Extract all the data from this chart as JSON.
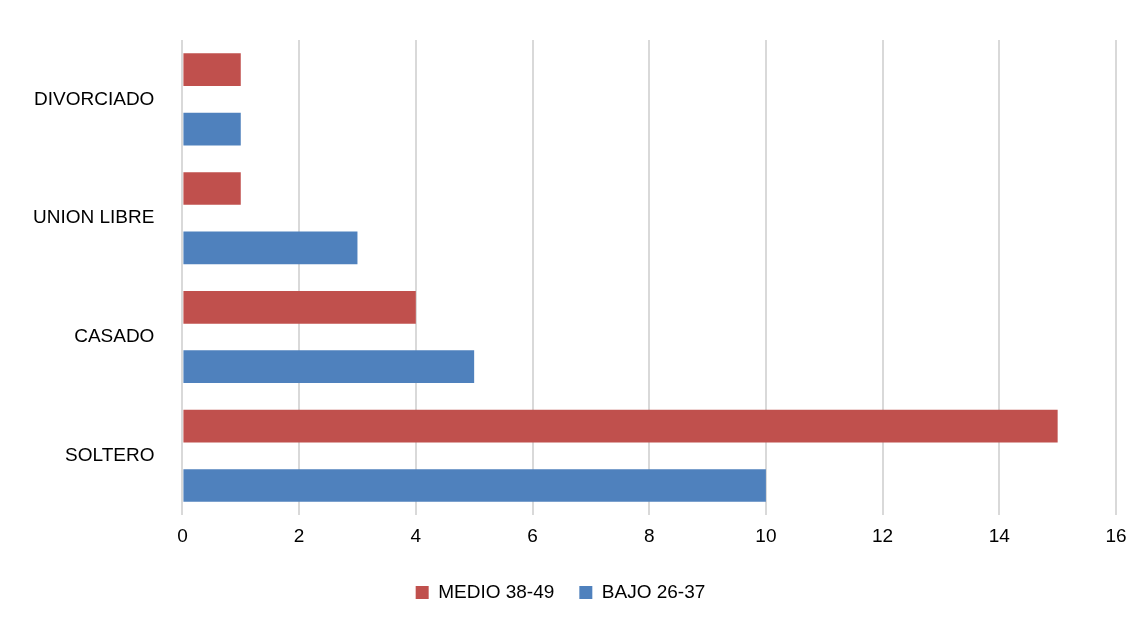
{
  "chart_data": {
    "type": "bar",
    "orientation": "horizontal",
    "categories": [
      "DIVORCIADO",
      "UNION LIBRE",
      "CASADO",
      "SOLTERO"
    ],
    "series": [
      {
        "name": "MEDIO 38-49",
        "color": "#c0504d",
        "values": [
          1,
          1,
          4,
          15
        ]
      },
      {
        "name": "BAJO 26-37",
        "color": "#4f81bd",
        "values": [
          1,
          3,
          5,
          10
        ]
      }
    ],
    "xlim": [
      0,
      16
    ],
    "xticks": [
      0,
      2,
      4,
      6,
      8,
      10,
      12,
      14,
      16
    ],
    "grid": "x",
    "legend": "bottom"
  }
}
